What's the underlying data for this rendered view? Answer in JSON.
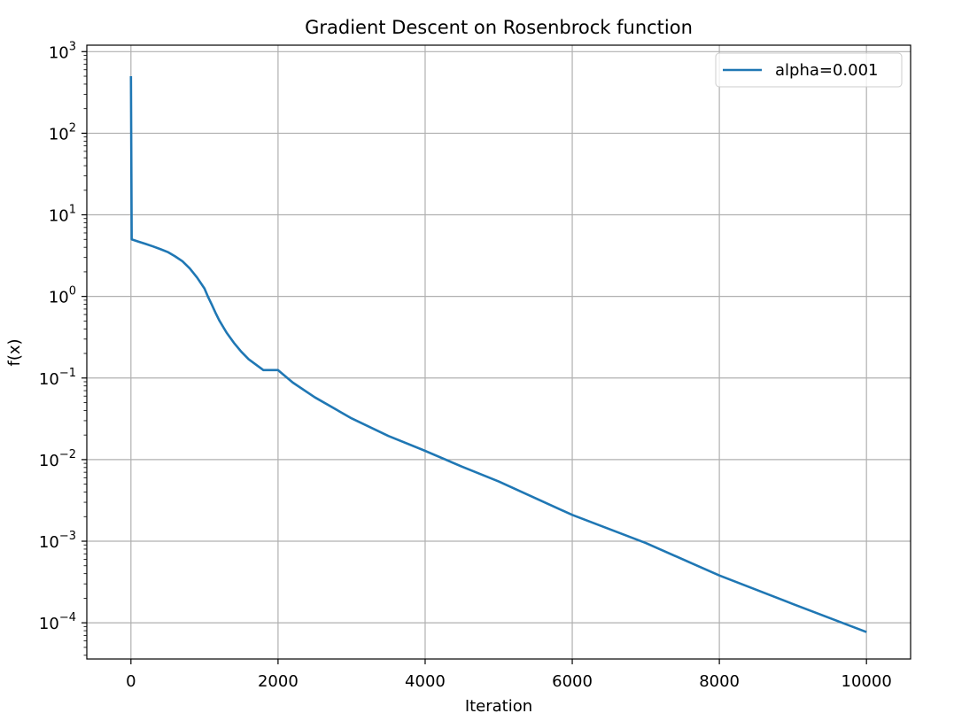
{
  "chart_data": {
    "type": "line",
    "title": "Gradient Descent on Rosenbrock function",
    "xlabel": "Iteration",
    "ylabel": "f(x)",
    "xlim": [
      -600,
      10600
    ],
    "xticks": [
      0,
      2000,
      4000,
      6000,
      8000,
      10000
    ],
    "xtick_labels": [
      "0",
      "2000",
      "4000",
      "6000",
      "8000",
      "10000"
    ],
    "yscale": "log",
    "ylim": [
      3.6e-05,
      1200
    ],
    "yticks": [
      {
        "value": 0.0001,
        "base": "10",
        "exp": "−4"
      },
      {
        "value": 0.001,
        "base": "10",
        "exp": "−3"
      },
      {
        "value": 0.01,
        "base": "10",
        "exp": "−2"
      },
      {
        "value": 0.1,
        "base": "10",
        "exp": "−1"
      },
      {
        "value": 1,
        "base": "10",
        "exp": "0"
      },
      {
        "value": 10,
        "base": "10",
        "exp": "1"
      },
      {
        "value": 100,
        "base": "10",
        "exp": "2"
      },
      {
        "value": 1000,
        "base": "10",
        "exp": "3"
      }
    ],
    "grid": true,
    "legend_position": "top-right",
    "series": [
      {
        "name": "alpha=0.001",
        "color": "#1f77b4",
        "x": [
          0,
          0,
          10,
          100,
          200,
          300,
          400,
          500,
          600,
          700,
          800,
          900,
          1000,
          1050,
          1100,
          1150,
          1200,
          1300,
          1400,
          1500,
          1600,
          1800,
          2000,
          2200,
          2500,
          3000,
          3500,
          4000,
          4500,
          5000,
          6000,
          7000,
          8000,
          9000,
          10000
        ],
        "y": [
          500,
          500,
          5.0,
          4.7,
          4.4,
          4.1,
          3.8,
          3.5,
          3.1,
          2.7,
          2.2,
          1.7,
          1.25,
          0.98,
          0.79,
          0.63,
          0.51,
          0.36,
          0.27,
          0.21,
          0.17,
          0.125,
          0.125,
          0.088,
          0.058,
          0.032,
          0.0195,
          0.0128,
          0.0082,
          0.0054,
          0.0021,
          0.00095,
          0.00038,
          0.00017,
          7.7e-05
        ]
      }
    ]
  }
}
